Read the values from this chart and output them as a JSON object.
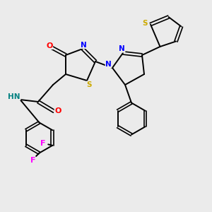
{
  "bg_color": "#ebebeb",
  "bond_color": "#000000",
  "atom_colors": {
    "O": "#ff0000",
    "N": "#0000ff",
    "S": "#ccaa00",
    "F": "#ff00ff",
    "H": "#008080",
    "C": "#000000"
  },
  "figsize": [
    3.0,
    3.0
  ],
  "dpi": 100
}
